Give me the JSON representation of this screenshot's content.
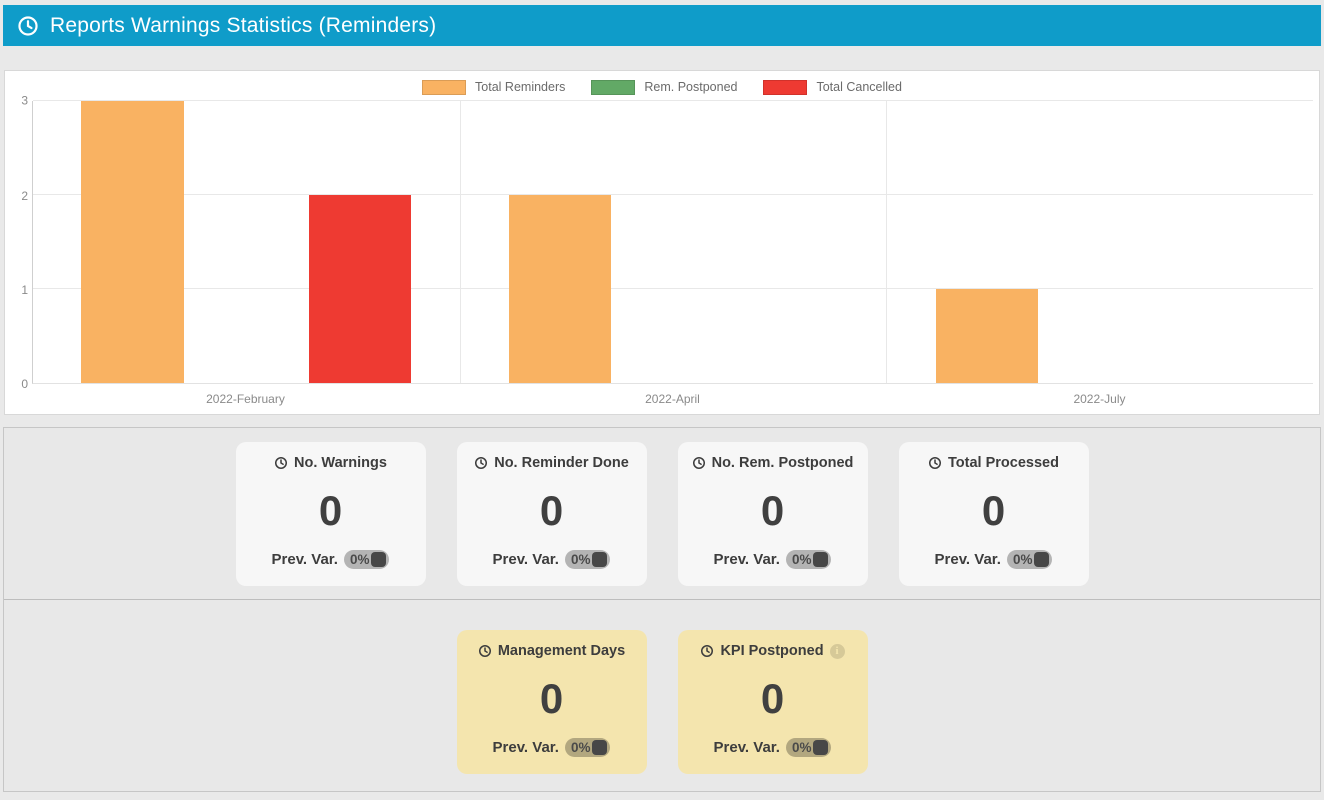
{
  "header": {
    "title": "Reports Warnings Statistics (Reminders)"
  },
  "colors": {
    "header_bg": "#0f9cc9",
    "orange": "#f9b262",
    "green": "#62a966",
    "red": "#ee3a32",
    "page_bg": "#e9e9e9",
    "gray_card_bg": "#f7f7f7",
    "yellow_card_bg": "#f4e5ae"
  },
  "chart_data": {
    "type": "bar",
    "title": "",
    "categories": [
      "2022-February",
      "2022-April",
      "2022-July"
    ],
    "series": [
      {
        "name": "Total Reminders",
        "color": "#f9b262",
        "values": [
          3,
          2,
          1
        ]
      },
      {
        "name": "Rem. Postponed",
        "color": "#62a966",
        "values": [
          0,
          0,
          0
        ]
      },
      {
        "name": "Total Cancelled",
        "color": "#ee3a32",
        "values": [
          2,
          0,
          0
        ]
      }
    ],
    "xlabel": "",
    "ylabel": "",
    "ylim": [
      0,
      3
    ],
    "yticks": [
      0,
      1,
      2,
      3
    ],
    "grid": true,
    "legend_position": "top-center"
  },
  "stat_cards": [
    {
      "title": "No. Warnings",
      "value": "0",
      "prev_label": "Prev. Var.",
      "prev_value": "0%",
      "style": "gray",
      "info": false
    },
    {
      "title": "No. Reminder Done",
      "value": "0",
      "prev_label": "Prev. Var.",
      "prev_value": "0%",
      "style": "gray",
      "info": false
    },
    {
      "title": "No. Rem. Postponed",
      "value": "0",
      "prev_label": "Prev. Var.",
      "prev_value": "0%",
      "style": "gray",
      "info": false
    },
    {
      "title": "Total Processed",
      "value": "0",
      "prev_label": "Prev. Var.",
      "prev_value": "0%",
      "style": "gray",
      "info": false
    }
  ],
  "kpi_cards": [
    {
      "title": "Management Days",
      "value": "0",
      "prev_label": "Prev. Var.",
      "prev_value": "0%",
      "style": "yellow",
      "info": false
    },
    {
      "title": "KPI Postponed",
      "value": "0",
      "prev_label": "Prev. Var.",
      "prev_value": "0%",
      "style": "yellow",
      "info": true
    }
  ]
}
